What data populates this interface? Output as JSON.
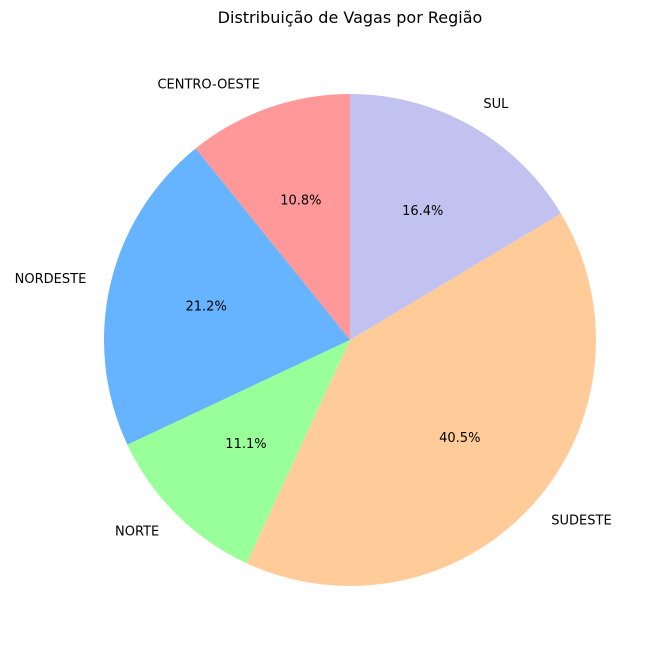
{
  "chart_data": {
    "type": "pie",
    "title": "Distribuição de Vagas por Região",
    "categories": [
      "CENTRO-OESTE",
      "NORDESTE",
      "NORTE",
      "SUDESTE",
      "SUL"
    ],
    "values": [
      10.8,
      21.2,
      11.1,
      40.5,
      16.4
    ],
    "value_labels": [
      "10.8%",
      "21.2%",
      "11.1%",
      "40.5%",
      "16.4%"
    ],
    "colors": [
      "#ff9999",
      "#66b3ff",
      "#99ff99",
      "#ffcc99",
      "#c2c2f0"
    ],
    "start_angle_deg": 90,
    "direction": "counterclockwise",
    "legend": "none"
  }
}
